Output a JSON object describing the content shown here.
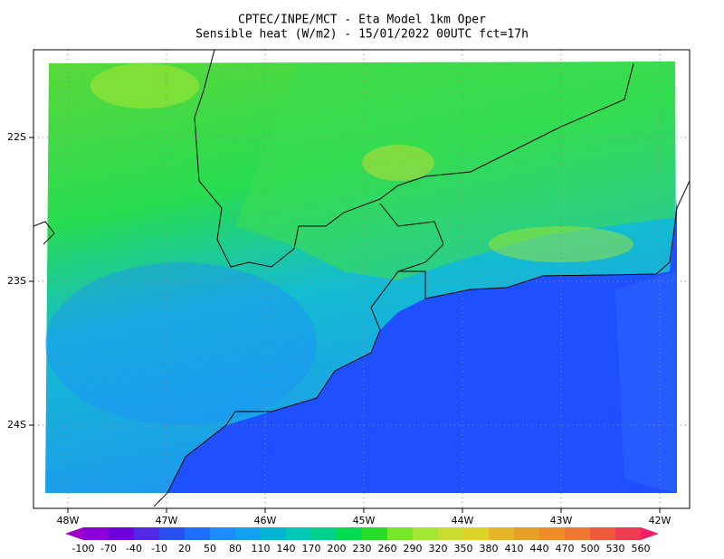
{
  "header": {
    "title_lines": [
      "CPTEC/INPE/MCT -  Eta Model 1km Oper",
      "Sensible heat (W/m2) - 15/01/2022 00UTC fct=17h"
    ]
  },
  "map": {
    "lon_labels": [
      "48W",
      "47W",
      "46W",
      "45W",
      "44W",
      "43W",
      "42W"
    ],
    "lat_labels": [
      "22S",
      "23S",
      "24S"
    ]
  },
  "colorbar": {
    "labels": [
      -100,
      -70,
      -40,
      -10,
      20,
      50,
      80,
      110,
      140,
      170,
      200,
      230,
      260,
      290,
      320,
      350,
      380,
      410,
      440,
      470,
      500,
      530,
      560
    ],
    "colors": [
      "#a000c8",
      "#8c00dc",
      "#6e00dc",
      "#5028e6",
      "#2850f0",
      "#1e6eff",
      "#1e8cff",
      "#14a0f0",
      "#00b4d2",
      "#00c8b4",
      "#00d28c",
      "#00dc50",
      "#28dc28",
      "#78e628",
      "#a0e632",
      "#c8dc32",
      "#dcd228",
      "#e6b428",
      "#e6a028",
      "#f08c28",
      "#f07832",
      "#f05a3c",
      "#f03c50",
      "#f01e64"
    ]
  }
}
